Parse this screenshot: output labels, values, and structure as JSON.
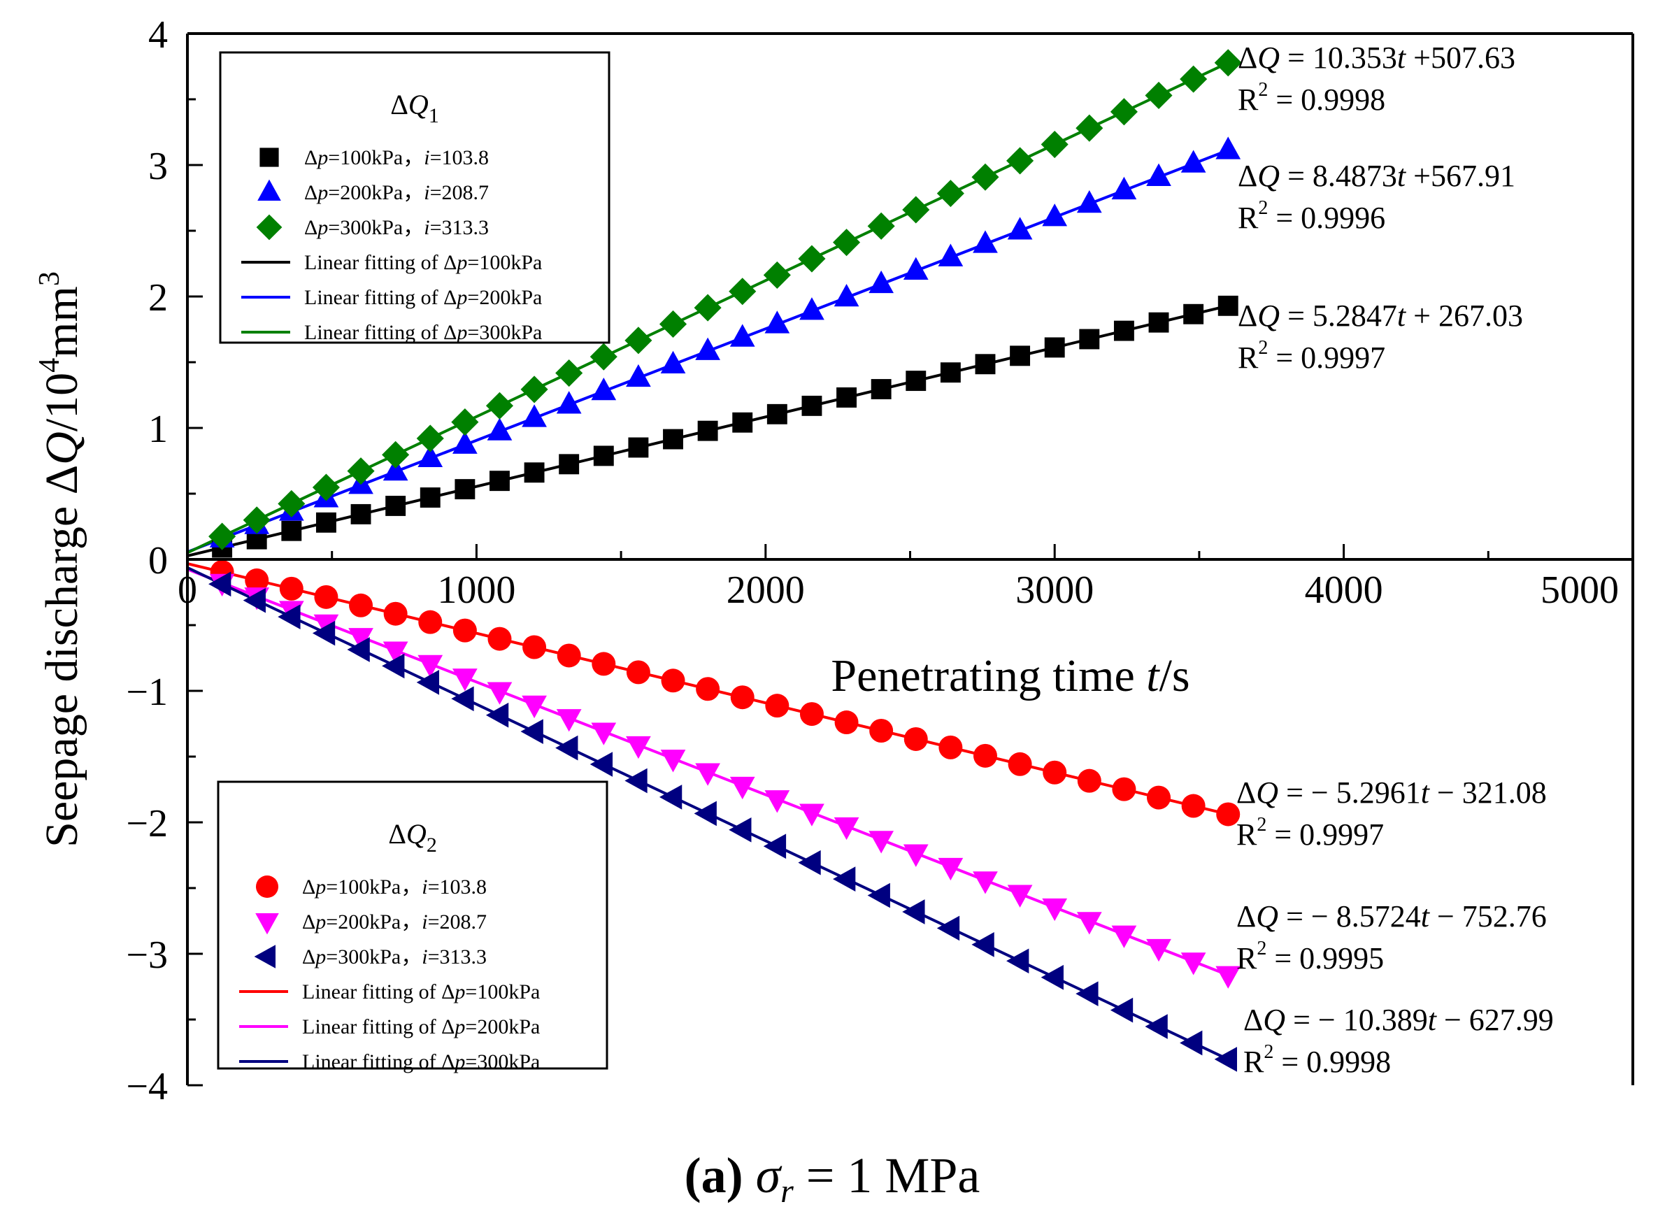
{
  "chart_data": {
    "type": "scatter",
    "title": "",
    "xlabel": "Penetrating time t/s",
    "ylabel": "Seepage discharge ΔQ/10⁴mm³",
    "xlim": [
      0,
      5000
    ],
    "ylim": [
      -4,
      4
    ],
    "x_ticks": [
      "0",
      "1000",
      "2000",
      "3000",
      "4000",
      "5000"
    ],
    "y_ticks": [
      "4",
      "3",
      "2",
      "1",
      "0",
      "−1",
      "−2",
      "−3",
      "−4"
    ],
    "caption": {
      "prefix": "(a)",
      "sigma": "σ",
      "sub": "r",
      "value": "= 1 MPa"
    },
    "legend_groups": [
      {
        "title": "ΔQ",
        "title_sub": "1",
        "placement": "top-left",
        "entries": [
          {
            "series": "dq1_100",
            "text": "Δp=100kPa，i=103.8"
          },
          {
            "series": "dq1_200",
            "text": "Δp=200kPa，i=208.7"
          },
          {
            "series": "dq1_300",
            "text": "Δp=300kPa，i=313.3"
          },
          {
            "series": "dq1_100",
            "line": true,
            "text": "Linear fitting of Δp=100kPa"
          },
          {
            "series": "dq1_200",
            "line": true,
            "text": "Linear fitting of Δp=200kPa"
          },
          {
            "series": "dq1_300",
            "line": true,
            "text": "Linear fitting of Δp=300kPa"
          }
        ]
      },
      {
        "title": "ΔQ",
        "title_sub": "2",
        "placement": "bottom-left",
        "entries": [
          {
            "series": "dq2_100",
            "text": "Δp=100kPa，i=103.8"
          },
          {
            "series": "dq2_200",
            "text": "Δp=200kPa，i=208.7"
          },
          {
            "series": "dq2_300",
            "text": "Δp=300kPa，i=313.3"
          },
          {
            "series": "dq2_100",
            "line": true,
            "text": "Linear fitting of Δp=100kPa"
          },
          {
            "series": "dq2_200",
            "line": true,
            "text": "Linear fitting of Δp=200kPa"
          },
          {
            "series": "dq2_300",
            "line": true,
            "text": "Linear fitting of Δp=300kPa"
          }
        ]
      }
    ],
    "series": [
      {
        "id": "dq1_100",
        "group": "ΔQ1",
        "name": "Δp=100kPa, i=103.8",
        "marker": "square",
        "color": "#000000",
        "slope": 5.2847,
        "intercept": 267.03,
        "r2": "0.9997",
        "equation": "ΔQ = 5.2847t + 267.03"
      },
      {
        "id": "dq1_200",
        "group": "ΔQ1",
        "name": "Δp=200kPa, i=208.7",
        "marker": "triangle-up",
        "color": "#0000ff",
        "slope": 8.4873,
        "intercept": 567.91,
        "r2": "0.9996",
        "equation": "ΔQ = 8.4873t +567.91"
      },
      {
        "id": "dq1_300",
        "group": "ΔQ1",
        "name": "Δp=300kPa, i=313.3",
        "marker": "diamond",
        "color": "#008000",
        "slope": 10.353,
        "intercept": 507.63,
        "r2": "0.9998",
        "equation": "ΔQ = 10.353t +507.63"
      },
      {
        "id": "dq2_100",
        "group": "ΔQ2",
        "name": "Δp=100kPa, i=103.8",
        "marker": "circle",
        "color": "#ff0000",
        "slope": -5.2961,
        "intercept": -321.08,
        "r2": "0.9997",
        "equation": "ΔQ = − 5.2961t − 321.08"
      },
      {
        "id": "dq2_200",
        "group": "ΔQ2",
        "name": "Δp=200kPa, i=208.7",
        "marker": "triangle-down",
        "color": "#ff00ff",
        "slope": -8.5724,
        "intercept": -752.76,
        "r2": "0.9995",
        "equation": "ΔQ = − 8.5724t − 752.76"
      },
      {
        "id": "dq2_300",
        "group": "ΔQ2",
        "name": "Δp=300kPa, i=313.3",
        "marker": "triangle-left",
        "color": "#000080",
        "slope": -10.389,
        "intercept": -627.99,
        "r2": "0.9998",
        "equation": "ΔQ = − 10.389t − 627.99"
      }
    ],
    "sampling": {
      "t_start": 120,
      "t_step": 120,
      "t_end": 3600,
      "value_unit": "mm³",
      "axis_scale": 10000
    }
  }
}
